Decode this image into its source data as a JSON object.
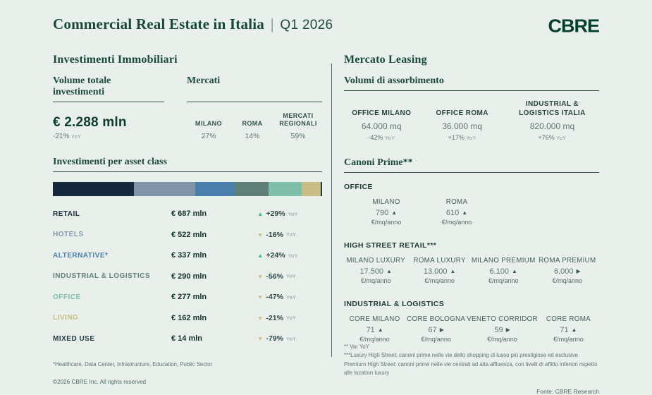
{
  "labels": {
    "yoy": "YoY"
  },
  "colors": {
    "background": "#E9F0EB",
    "brand_green": "#003F2D",
    "heading_green": "#17493B",
    "text_dark": "#17302B",
    "text_gray": "#5E7571",
    "up_green": "#3CBD8C",
    "down_tan": "#C9BD85",
    "divider": "#4D665F"
  },
  "header": {
    "title": "Commercial Real Estate in Italia",
    "separator": "|",
    "period": "Q1 2026",
    "logo": "CBRE"
  },
  "investments": {
    "section_title": "Investimenti Immobiliari",
    "volume": {
      "label": "Volume totale investimenti",
      "value": "€ 2.288 mln",
      "change": "-21%"
    },
    "mercati": {
      "label": "Mercati",
      "columns": [
        {
          "name": "MILANO",
          "value": "27%"
        },
        {
          "name": "ROMA",
          "value": "14%"
        },
        {
          "name": "MERCATI REGIONALI",
          "value": "59%"
        }
      ]
    },
    "asset_class": {
      "label": "Investimenti per asset class",
      "rows": [
        {
          "name": "RETAIL",
          "value": "€ 687 mln",
          "change": "+29%",
          "direction": "up",
          "color": "#15293E"
        },
        {
          "name": "HOTELS",
          "value": "€ 522 mln",
          "change": "-16%",
          "direction": "down",
          "color": "#8095A7"
        },
        {
          "name": "ALTERNATIVE*",
          "value": "€ 337 mln",
          "change": "+24%",
          "direction": "up",
          "color": "#4A7EAB"
        },
        {
          "name": "INDUSTRIAL & LOGISTICS",
          "value": "€ 290 mln",
          "change": "-56%",
          "direction": "down",
          "color": "#5F8078"
        },
        {
          "name": "OFFICE",
          "value": "€ 277 mln",
          "change": "-47%",
          "direction": "down",
          "color": "#7FBEA8"
        },
        {
          "name": "LIVING",
          "value": "€ 162 mln",
          "change": "-21%",
          "direction": "down",
          "color": "#C9BD85"
        },
        {
          "name": "MIXED USE",
          "value": "€ 14 mln",
          "change": "-79%",
          "direction": "down",
          "color": "#1E3B41"
        }
      ]
    },
    "footnote": "*Healthcare, Data Center, Infrastructure, Education, Public Sector",
    "copyright": "©2026 CBRE Inc. All rights reserved"
  },
  "leasing": {
    "section_title": "Mercato Leasing",
    "absorption": {
      "label": "Volumi di assorbimento",
      "columns": [
        {
          "name": "OFFICE MILANO",
          "value": "64.000 mq",
          "change": "-42%"
        },
        {
          "name": "OFFICE ROMA",
          "value": "36.000 mq",
          "change": "+17%"
        },
        {
          "name": "INDUSTRIAL & LOGISTICS ITALIA",
          "value": "820.000 mq",
          "change": "+76%"
        }
      ]
    },
    "canoni": {
      "label": "Canoni Prime**",
      "unit": "€/mq/anno",
      "groups": [
        {
          "name": "OFFICE",
          "items": [
            {
              "name": "MILANO",
              "value": "790",
              "trend": "up"
            },
            {
              "name": "ROMA",
              "value": "610",
              "trend": "up"
            }
          ]
        },
        {
          "name": "HIGH STREET RETAIL***",
          "items": [
            {
              "name": "MILANO LUXURY",
              "value": "17.500",
              "trend": "up"
            },
            {
              "name": "ROMA LUXURY",
              "value": "13.000",
              "trend": "up"
            },
            {
              "name": "MILANO PREMIUM",
              "value": "6.100",
              "trend": "up"
            },
            {
              "name": "ROMA PREMIUM",
              "value": "6.000",
              "trend": "flat"
            }
          ]
        },
        {
          "name": "INDUSTRIAL & LOGISTICS",
          "items": [
            {
              "name": "CORE MILANO",
              "value": "71",
              "trend": "up"
            },
            {
              "name": "CORE BOLOGNA",
              "value": "67",
              "trend": "flat"
            },
            {
              "name": "VENETO CORRIDOR",
              "value": "59",
              "trend": "flat"
            },
            {
              "name": "CORE ROMA",
              "value": "71",
              "trend": "up"
            }
          ]
        }
      ]
    },
    "footnotes": [
      "** Var YoY",
      "***Luxury High Street: canoni prime nelle vie dello shopping di lusso più prestigiose ed esclusive",
      "Premium High Street: canoni prime nelle vie centrali ad alta affluenza, con livelli di affitto inferiori rispetto alle location luxury"
    ],
    "source": "Fonte: CBRE Research"
  },
  "chart_data": {
    "type": "bar",
    "subtype": "stacked-horizontal",
    "title": "Investimenti per asset class",
    "unit": "€ mln",
    "total": 2289,
    "series": [
      {
        "name": "Retail",
        "value": 687,
        "color": "#15293E"
      },
      {
        "name": "Hotels",
        "value": 522,
        "color": "#8095A7"
      },
      {
        "name": "Alternative",
        "value": 337,
        "color": "#4A7EAB"
      },
      {
        "name": "Industrial & Logistics",
        "value": 290,
        "color": "#5F8078"
      },
      {
        "name": "Office",
        "value": 277,
        "color": "#7FBEA8"
      },
      {
        "name": "Living",
        "value": 162,
        "color": "#C9BD85"
      },
      {
        "name": "Mixed Use",
        "value": 14,
        "color": "#1E3B41"
      }
    ]
  }
}
